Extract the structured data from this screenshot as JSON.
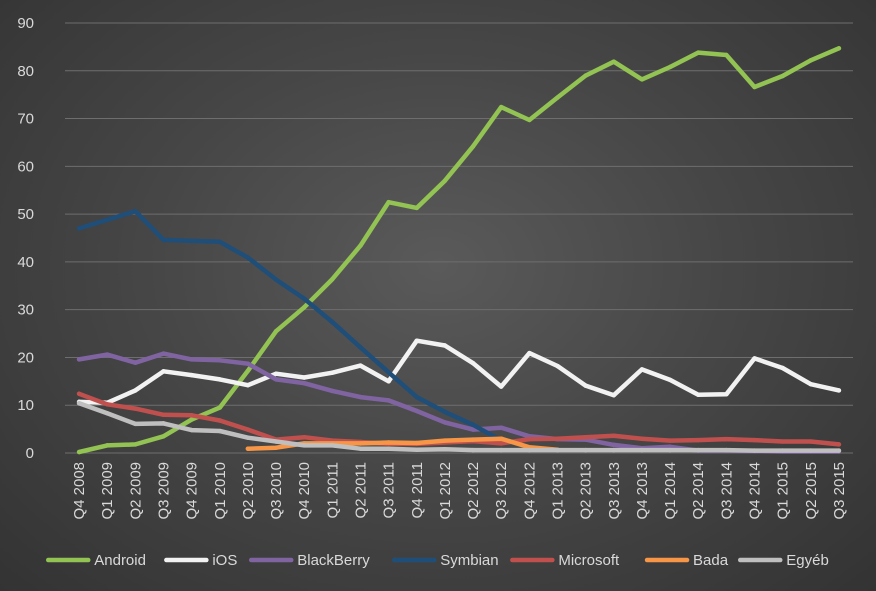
{
  "chart_data": {
    "type": "line",
    "title": "",
    "xlabel": "",
    "ylabel": "",
    "ylim": [
      0,
      90
    ],
    "yticks": [
      0,
      10,
      20,
      30,
      40,
      50,
      60,
      70,
      80,
      90
    ],
    "grid": true,
    "legend_position": "bottom",
    "categories": [
      "Q4 2008",
      "Q1 2009",
      "Q2 2009",
      "Q3 2009",
      "Q4 2009",
      "Q1 2010",
      "Q2 2010",
      "Q3 2010",
      "Q4 2010",
      "Q1 2011",
      "Q2 2011",
      "Q3 2011",
      "Q4 2011",
      "Q1 2012",
      "Q2 2012",
      "Q3 2012",
      "Q4 2012",
      "Q1 2013",
      "Q2 2013",
      "Q3 2013",
      "Q4 2013",
      "Q1 2014",
      "Q2 2014",
      "Q3 2014",
      "Q4 2014",
      "Q1 2015",
      "Q2 2015",
      "Q3 2015"
    ],
    "series": [
      {
        "name": "Android",
        "color": "#92c353",
        "values": [
          0.2,
          1.6,
          1.8,
          3.5,
          7.0,
          9.5,
          17.2,
          25.5,
          30.5,
          36.4,
          43.4,
          52.5,
          51.3,
          57.0,
          64.2,
          72.4,
          69.7,
          74.4,
          79.0,
          81.9,
          78.2,
          80.8,
          83.8,
          83.3,
          76.6,
          78.9,
          82.2,
          84.7
        ]
      },
      {
        "name": "iOS",
        "color": "#f2f2f2",
        "values": [
          10.7,
          10.5,
          13.1,
          17.1,
          16.3,
          15.4,
          14.2,
          16.6,
          15.8,
          16.8,
          18.3,
          15.0,
          23.5,
          22.5,
          18.8,
          13.9,
          20.9,
          18.2,
          14.1,
          12.1,
          17.5,
          15.3,
          12.2,
          12.3,
          19.8,
          17.8,
          14.4,
          13.1
        ]
      },
      {
        "name": "BlackBerry",
        "color": "#8064a2",
        "values": [
          19.6,
          20.6,
          18.9,
          20.8,
          19.6,
          19.4,
          18.7,
          15.4,
          14.6,
          13.0,
          11.7,
          11.0,
          8.8,
          6.4,
          4.9,
          5.3,
          3.5,
          2.9,
          2.8,
          1.7,
          1.0,
          1.3,
          0.5,
          0.5,
          0.4,
          0.3,
          0.3,
          0.3
        ]
      },
      {
        "name": "Symbian",
        "color": "#1f4e79",
        "values": [
          47.0,
          48.8,
          50.6,
          44.6,
          44.4,
          44.2,
          40.9,
          36.3,
          32.3,
          27.4,
          22.1,
          16.9,
          11.7,
          8.6,
          5.9,
          2.6,
          null,
          null,
          null,
          null,
          null,
          null,
          null,
          null,
          null,
          null,
          null,
          null
        ]
      },
      {
        "name": "Microsoft",
        "color": "#c0504d",
        "values": [
          12.4,
          10.2,
          9.3,
          8.0,
          7.9,
          6.8,
          4.9,
          2.8,
          3.3,
          2.6,
          2.3,
          1.9,
          1.9,
          2.2,
          2.5,
          2.0,
          2.9,
          3.0,
          3.3,
          3.6,
          3.0,
          2.6,
          2.7,
          2.9,
          2.7,
          2.4,
          2.4,
          1.8
        ]
      },
      {
        "name": "Bada",
        "color": "#f79646",
        "values": [
          null,
          null,
          null,
          null,
          null,
          null,
          0.9,
          1.1,
          2.0,
          2.0,
          2.0,
          2.2,
          2.1,
          2.6,
          2.8,
          3.0,
          1.2,
          0.7,
          null,
          null,
          null,
          null,
          null,
          null,
          null,
          null,
          null,
          null
        ]
      },
      {
        "name": "Egyéb",
        "color": "#bfbfbf",
        "values": [
          10.4,
          8.3,
          6.1,
          6.2,
          4.8,
          4.6,
          3.2,
          2.4,
          1.6,
          1.6,
          0.9,
          0.9,
          0.7,
          0.8,
          0.6,
          0.6,
          0.6,
          0.6,
          0.6,
          0.6,
          0.6,
          0.6,
          0.6,
          0.6,
          0.5,
          0.5,
          0.5,
          0.5
        ]
      }
    ]
  }
}
